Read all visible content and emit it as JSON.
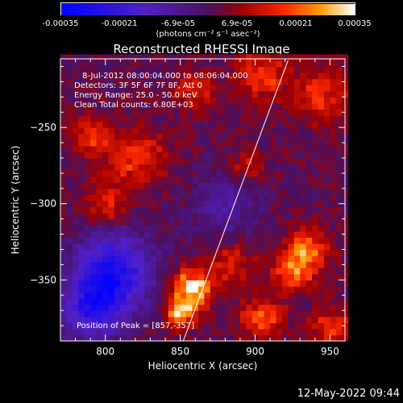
{
  "colorbar": {
    "ticks": [
      "-0.00035",
      "-0.00021",
      "-6.9e-05",
      "6.9e-05",
      "0.00021",
      "0.00035"
    ],
    "unit_label": "(photons cm⁻² s⁻¹ asec⁻²)"
  },
  "title": "Reconstructed RHESSI Image",
  "info_lines": [
    "8-Jul-2012 08:00:04.000 to 08:06:04.000",
    "Detectors: 3F 5F 6F 7F 8F, Att 0",
    "Energy Range: 25.0 - 50.0 keV",
    "Clean     Total counts: 6.80E+03"
  ],
  "peak_label": "Position of Peak = [857,-357]",
  "date_stamp": "12-May-2022 09:44",
  "chart_data": {
    "type": "heatmap",
    "title": "Reconstructed RHESSI Image",
    "xlabel": "Heliocentric X (arcsec)",
    "ylabel": "Heliocentric Y (arcsec)",
    "xlim": [
      770,
      960
    ],
    "ylim": [
      -390,
      -205
    ],
    "xticks": [
      800,
      850,
      900,
      950
    ],
    "yticks": [
      -250,
      -300,
      -350
    ],
    "colorbar_range": [
      -0.00035,
      0.00035
    ],
    "limb_line": [
      [
        852,
        -390
      ],
      [
        922,
        -206
      ]
    ],
    "peak": [
      857,
      -357
    ],
    "grid_step_arcsec": 4,
    "bright_sources": [
      {
        "x": 858,
        "y": -356,
        "sigma": 9,
        "peak": 0.95
      },
      {
        "x": 850,
        "y": -372,
        "sigma": 7,
        "peak": 0.7
      },
      {
        "x": 820,
        "y": -270,
        "sigma": 14,
        "peak": 0.45
      },
      {
        "x": 800,
        "y": -300,
        "sigma": 10,
        "peak": 0.45
      },
      {
        "x": 790,
        "y": -255,
        "sigma": 9,
        "peak": 0.45
      },
      {
        "x": 905,
        "y": -215,
        "sigma": 12,
        "peak": 0.5
      },
      {
        "x": 945,
        "y": -230,
        "sigma": 12,
        "peak": 0.5
      },
      {
        "x": 935,
        "y": -330,
        "sigma": 10,
        "peak": 0.65
      },
      {
        "x": 925,
        "y": -345,
        "sigma": 9,
        "peak": 0.55
      },
      {
        "x": 885,
        "y": -340,
        "sigma": 10,
        "peak": 0.4
      },
      {
        "x": 905,
        "y": -375,
        "sigma": 10,
        "peak": 0.55
      },
      {
        "x": 950,
        "y": -380,
        "sigma": 9,
        "peak": 0.45
      },
      {
        "x": 860,
        "y": -225,
        "sigma": 10,
        "peak": 0.35
      },
      {
        "x": 895,
        "y": -275,
        "sigma": 9,
        "peak": 0.3
      }
    ],
    "dark_regions": [
      {
        "x": 805,
        "y": -345,
        "sigma": 18,
        "depth": -0.85
      },
      {
        "x": 790,
        "y": -370,
        "sigma": 14,
        "depth": -0.6
      },
      {
        "x": 880,
        "y": -300,
        "sigma": 16,
        "depth": -0.3
      }
    ]
  }
}
